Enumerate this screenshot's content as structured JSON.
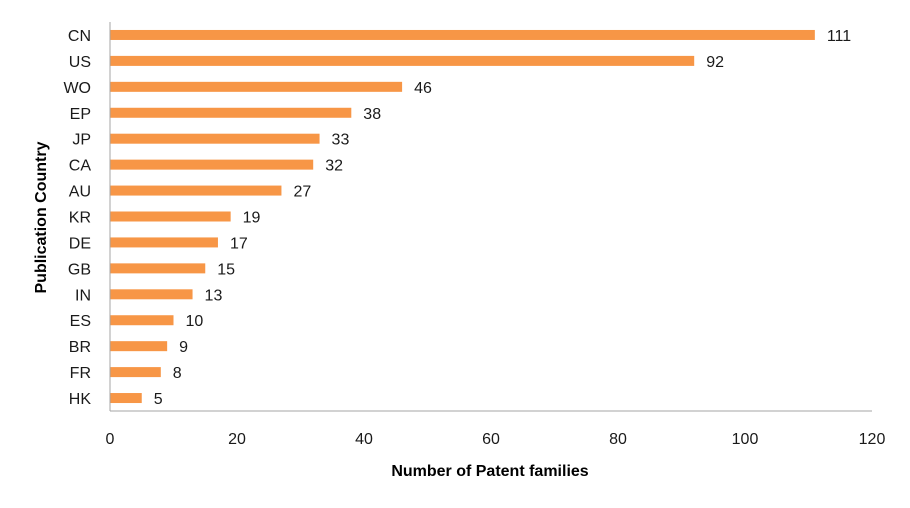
{
  "chart_data": {
    "type": "bar",
    "orientation": "horizontal",
    "categories": [
      "CN",
      "US",
      "WO",
      "EP",
      "JP",
      "CA",
      "AU",
      "KR",
      "DE",
      "GB",
      "IN",
      "ES",
      "BR",
      "FR",
      "HK"
    ],
    "values": [
      111,
      92,
      46,
      38,
      33,
      32,
      27,
      19,
      17,
      15,
      13,
      10,
      9,
      8,
      5
    ],
    "title": "",
    "xlabel": "Number of Patent families",
    "ylabel": "Publication Country",
    "xlim": [
      0,
      120
    ],
    "xticks": [
      0,
      20,
      40,
      60,
      80,
      100,
      120
    ],
    "grid": false,
    "legend": "none",
    "bar_color": "#f79646"
  }
}
